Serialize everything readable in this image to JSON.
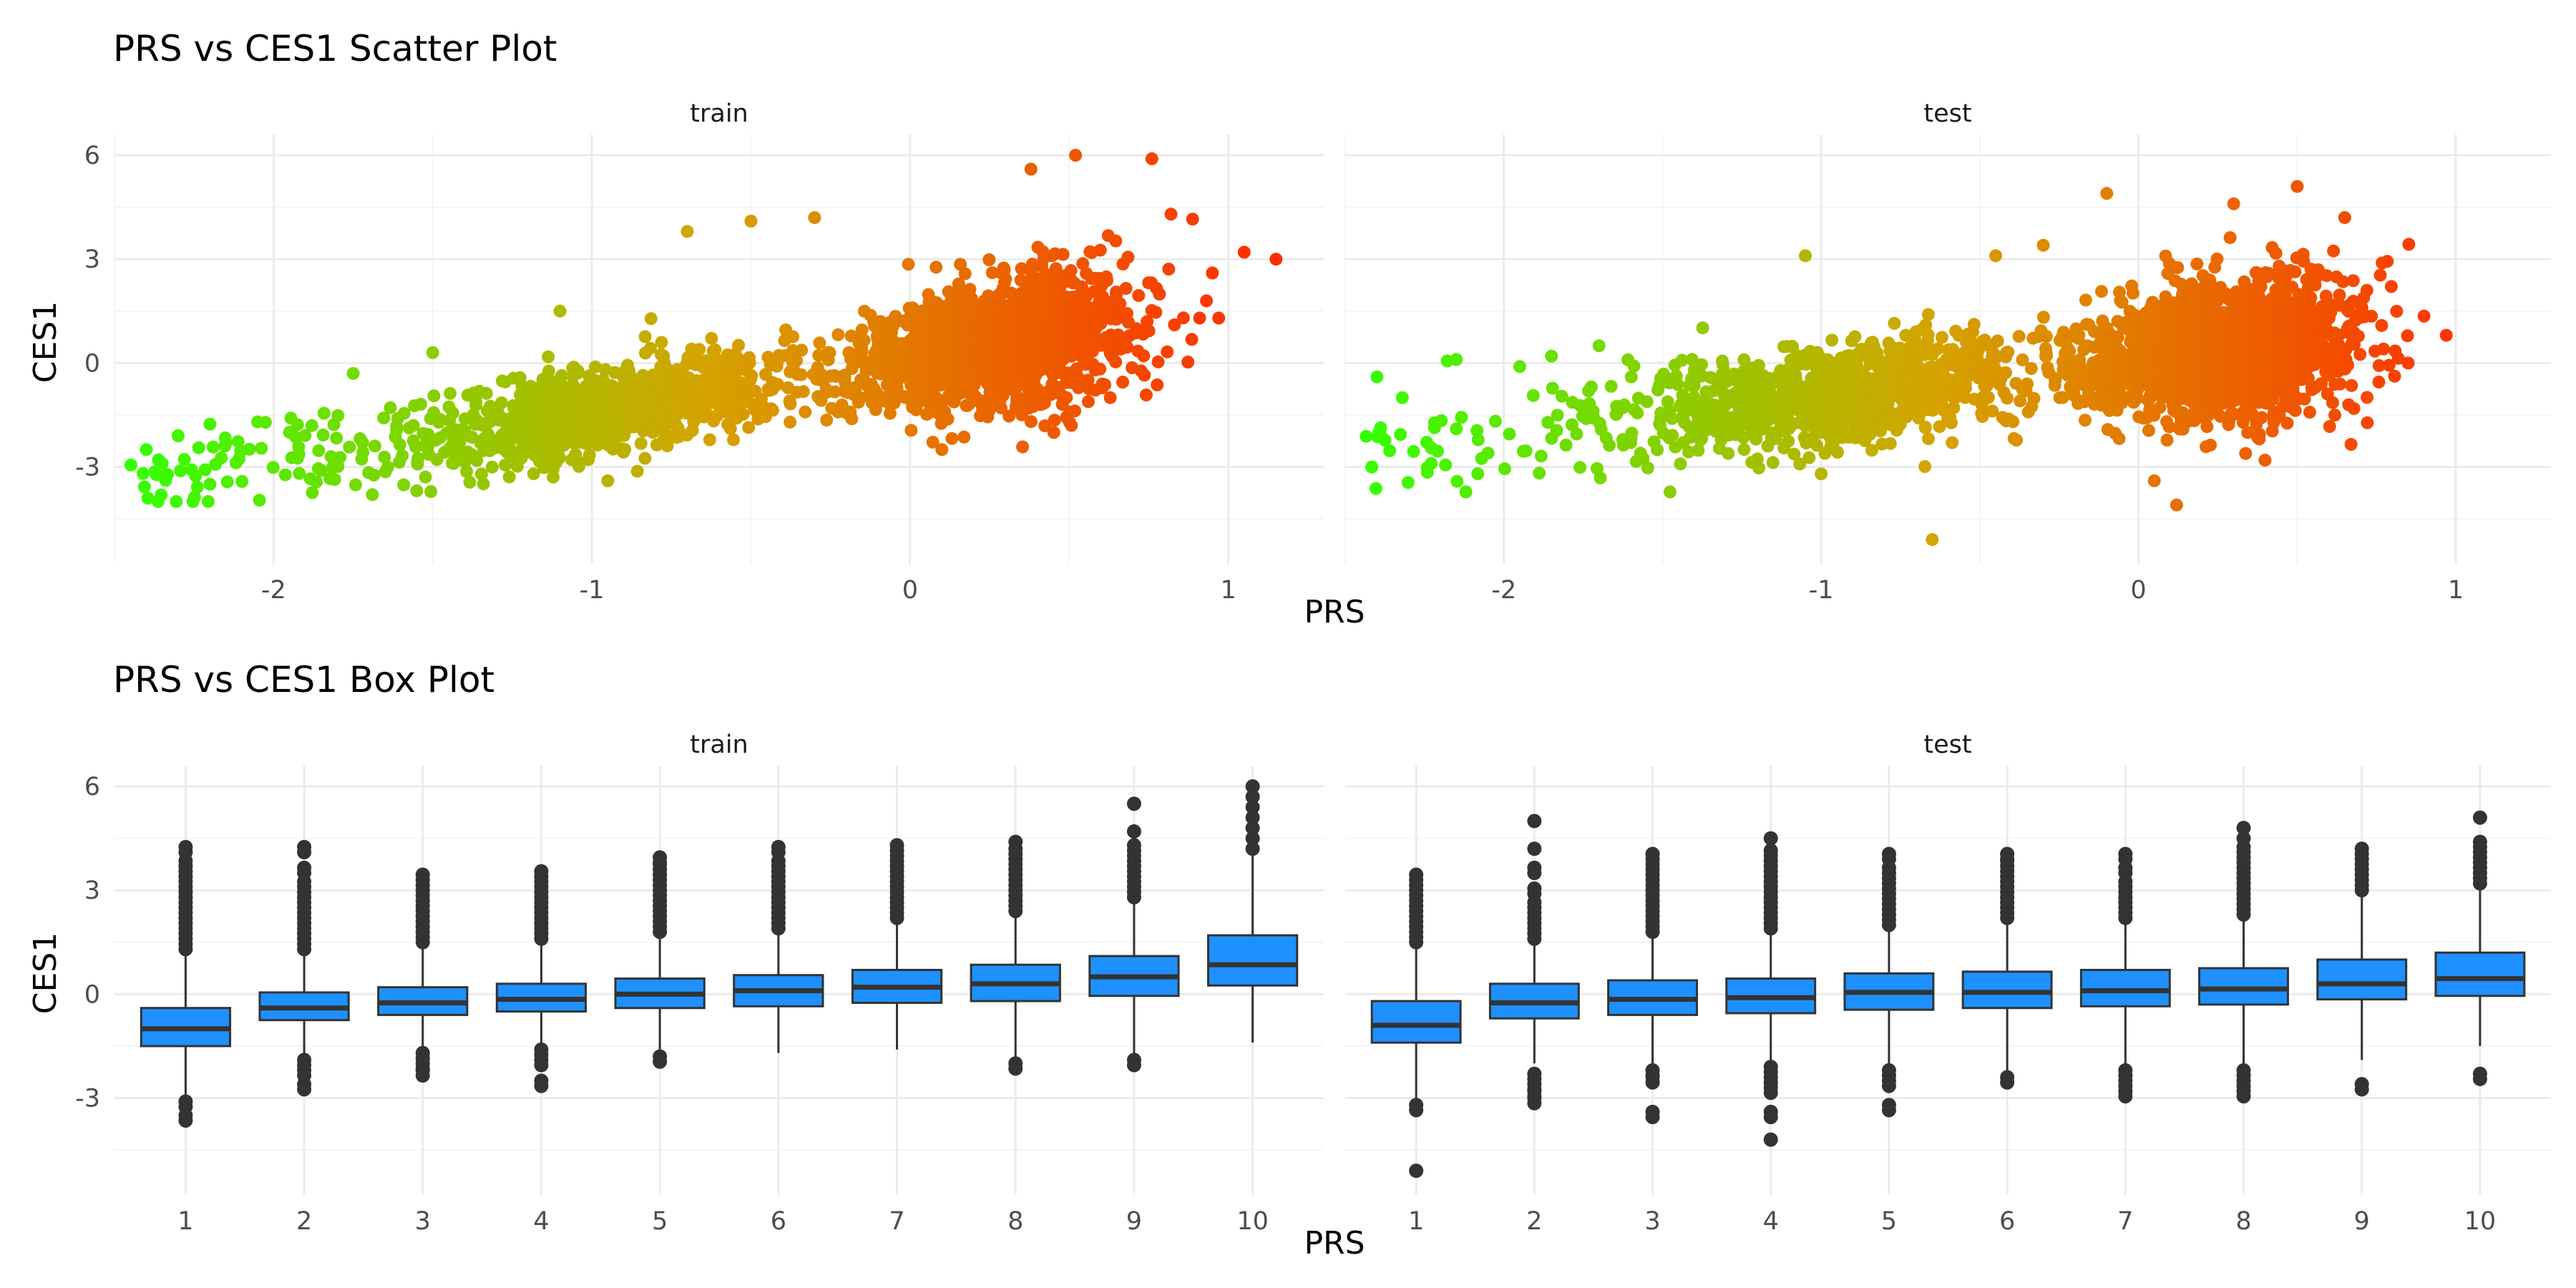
{
  "chart_data": [
    {
      "type": "scatter",
      "title": "PRS vs CES1 Scatter Plot",
      "xlabel": "PRS",
      "ylabel": "CES1",
      "facets": [
        "train",
        "test"
      ],
      "xlim": [
        -2.5,
        1.3
      ],
      "ylim": [
        -5.8,
        6.6
      ],
      "x_ticks": [
        -2,
        -1,
        0,
        1
      ],
      "y_ticks": [
        -3,
        0,
        3,
        6
      ],
      "grid": true,
      "legend": "none",
      "color_gradient": {
        "low": "#33ff00",
        "mid": "#d4a400",
        "high": "#ff2a00",
        "mapped_to": "PRS"
      },
      "trend": {
        "train": {
          "slope": 1.5,
          "intercept": 0.1,
          "spread": 0.9
        },
        "test": {
          "slope": 1.1,
          "intercept": 0.15,
          "spread": 1.0
        }
      },
      "highlight_points": {
        "train": [
          {
            "x": -2.4,
            "y": -2.5
          },
          {
            "x": -2.35,
            "y": -2.9
          },
          {
            "x": -2.3,
            "y": -2.1
          },
          {
            "x": -2.2,
            "y": -3.5
          },
          {
            "x": -2.15,
            "y": -2.3
          },
          {
            "x": -2.05,
            "y": -1.7
          },
          {
            "x": -1.95,
            "y": -2.0
          },
          {
            "x": -1.85,
            "y": -3.1
          },
          {
            "x": -1.75,
            "y": -0.3
          },
          {
            "x": -1.5,
            "y": 0.3
          },
          {
            "x": -1.1,
            "y": 1.5
          },
          {
            "x": -0.95,
            "y": -3.4
          },
          {
            "x": -0.7,
            "y": 3.8
          },
          {
            "x": -0.5,
            "y": 4.1
          },
          {
            "x": -0.3,
            "y": 4.2
          },
          {
            "x": 0.38,
            "y": 5.6
          },
          {
            "x": 0.52,
            "y": 6.0
          },
          {
            "x": 0.76,
            "y": 5.9
          },
          {
            "x": 0.82,
            "y": 4.3
          },
          {
            "x": 0.95,
            "y": 2.6
          },
          {
            "x": 1.05,
            "y": 3.2
          },
          {
            "x": 1.15,
            "y": 3.0
          },
          {
            "x": 0.97,
            "y": 1.3
          },
          {
            "x": 0.1,
            "y": -2.5
          }
        ],
        "test": [
          {
            "x": -2.4,
            "y": -0.4
          },
          {
            "x": -2.32,
            "y": -1.0
          },
          {
            "x": -2.15,
            "y": 0.1
          },
          {
            "x": -2.15,
            "y": -1.9
          },
          {
            "x": -2.05,
            "y": -2.6
          },
          {
            "x": -1.95,
            "y": -0.1
          },
          {
            "x": -1.85,
            "y": 0.2
          },
          {
            "x": -1.7,
            "y": 0.5
          },
          {
            "x": -1.6,
            "y": -2.3
          },
          {
            "x": -1.4,
            "y": -0.2
          },
          {
            "x": -1.05,
            "y": 3.1
          },
          {
            "x": -1.0,
            "y": -3.2
          },
          {
            "x": -0.65,
            "y": -5.1
          },
          {
            "x": -0.45,
            "y": 3.1
          },
          {
            "x": -0.3,
            "y": 3.4
          },
          {
            "x": -0.1,
            "y": 4.9
          },
          {
            "x": 0.05,
            "y": -3.4
          },
          {
            "x": 0.12,
            "y": -4.1
          },
          {
            "x": 0.5,
            "y": 5.1
          },
          {
            "x": 0.65,
            "y": 4.2
          },
          {
            "x": 0.85,
            "y": 0.0
          },
          {
            "x": 0.97,
            "y": 0.8
          },
          {
            "x": 0.3,
            "y": 4.6
          },
          {
            "x": 0.72,
            "y": 2.1
          }
        ]
      }
    },
    {
      "type": "box",
      "title": "PRS vs CES1 Box Plot",
      "xlabel": "PRS",
      "ylabel": "CES1",
      "facets": [
        "train",
        "test"
      ],
      "categories": [
        "1",
        "2",
        "3",
        "4",
        "5",
        "6",
        "7",
        "8",
        "9",
        "10"
      ],
      "ylim": [
        -5.8,
        6.6
      ],
      "y_ticks": [
        -3,
        0,
        3,
        6
      ],
      "grid": true,
      "legend": "none",
      "box_fill": "#1e90ff",
      "box_line": "#333333",
      "series": [
        {
          "name": "train",
          "boxes": [
            {
              "q1": -1.5,
              "median": -1.0,
              "q3": -0.4,
              "whisker_low": -3.0,
              "whisker_high": 1.1,
              "outliers": [
                -3.1,
                -3.5,
                1.3,
                1.6,
                1.9,
                2.2,
                2.5,
                2.8,
                3.1,
                3.4,
                3.7,
                4.1
              ]
            },
            {
              "q1": -0.75,
              "median": -0.4,
              "q3": 0.05,
              "whisker_low": -1.8,
              "whisker_high": 1.2,
              "outliers": [
                -1.9,
                -2.2,
                -2.6,
                1.3,
                1.6,
                1.9,
                2.2,
                2.5,
                2.8,
                3.1,
                3.5,
                4.1
              ]
            },
            {
              "q1": -0.6,
              "median": -0.25,
              "q3": 0.2,
              "whisker_low": -1.6,
              "whisker_high": 1.4,
              "outliers": [
                -1.7,
                -2.0,
                -2.2,
                1.5,
                1.8,
                2.1,
                2.4,
                2.7,
                3.0,
                3.3
              ]
            },
            {
              "q1": -0.5,
              "median": -0.15,
              "q3": 0.3,
              "whisker_low": -1.5,
              "whisker_high": 1.5,
              "outliers": [
                -1.6,
                -1.9,
                -2.5,
                1.6,
                1.9,
                2.2,
                2.5,
                2.8,
                3.1,
                3.4
              ]
            },
            {
              "q1": -0.4,
              "median": 0.0,
              "q3": 0.45,
              "whisker_low": -1.7,
              "whisker_high": 1.7,
              "outliers": [
                -1.8,
                1.8,
                2.1,
                2.4,
                2.7,
                3.0,
                3.3,
                3.6,
                3.8
              ]
            },
            {
              "q1": -0.35,
              "median": 0.1,
              "q3": 0.55,
              "whisker_low": -1.7,
              "whisker_high": 1.8,
              "outliers": [
                1.9,
                2.2,
                2.5,
                2.8,
                3.1,
                3.4,
                3.7,
                4.1
              ]
            },
            {
              "q1": -0.25,
              "median": 0.2,
              "q3": 0.7,
              "whisker_low": -1.6,
              "whisker_high": 2.1,
              "outliers": [
                2.2,
                2.5,
                2.8,
                3.1,
                3.4,
                3.7,
                4.0,
                4.3
              ]
            },
            {
              "q1": -0.2,
              "median": 0.3,
              "q3": 0.85,
              "whisker_low": -1.8,
              "whisker_high": 2.3,
              "outliers": [
                -2.0,
                2.4,
                2.7,
                3.0,
                3.3,
                3.6,
                3.9,
                4.2,
                4.4
              ]
            },
            {
              "q1": -0.05,
              "median": 0.5,
              "q3": 1.1,
              "whisker_low": -1.7,
              "whisker_high": 2.7,
              "outliers": [
                -1.9,
                2.8,
                3.1,
                3.4,
                3.7,
                4.0,
                4.3,
                4.7,
                5.5
              ]
            },
            {
              "q1": 0.25,
              "median": 0.85,
              "q3": 1.7,
              "whisker_low": -1.4,
              "whisker_high": 4.1,
              "outliers": [
                4.2,
                4.5,
                4.8,
                5.1,
                5.4,
                5.7,
                6.0
              ]
            }
          ]
        },
        {
          "name": "test",
          "boxes": [
            {
              "q1": -1.4,
              "median": -0.9,
              "q3": -0.2,
              "whisker_low": -3.0,
              "whisker_high": 1.3,
              "outliers": [
                -3.2,
                -5.1,
                1.5,
                1.8,
                2.1,
                2.4,
                2.7,
                3.0,
                3.3
              ]
            },
            {
              "q1": -0.7,
              "median": -0.25,
              "q3": 0.3,
              "whisker_low": -2.0,
              "whisker_high": 1.5,
              "outliers": [
                -2.3,
                -2.6,
                -2.8,
                -3.0,
                1.6,
                1.9,
                2.2,
                2.5,
                2.9,
                3.5,
                4.2,
                5.0
              ]
            },
            {
              "q1": -0.6,
              "median": -0.15,
              "q3": 0.4,
              "whisker_low": -2.0,
              "whisker_high": 1.7,
              "outliers": [
                -2.2,
                -2.4,
                -3.4,
                1.8,
                2.1,
                2.4,
                2.7,
                3.0,
                3.3,
                3.6,
                3.9
              ]
            },
            {
              "q1": -0.55,
              "median": -0.1,
              "q3": 0.45,
              "whisker_low": -2.0,
              "whisker_high": 1.8,
              "outliers": [
                -2.1,
                -2.4,
                -2.7,
                -3.4,
                -4.2,
                1.9,
                2.2,
                2.5,
                2.8,
                3.1,
                3.4,
                3.7,
                4.0,
                4.5
              ]
            },
            {
              "q1": -0.45,
              "median": 0.05,
              "q3": 0.6,
              "whisker_low": -2.0,
              "whisker_high": 1.9,
              "outliers": [
                -2.2,
                -2.5,
                -3.2,
                2.0,
                2.3,
                2.6,
                2.9,
                3.2,
                3.5,
                3.9
              ]
            },
            {
              "q1": -0.4,
              "median": 0.05,
              "q3": 0.65,
              "whisker_low": -2.3,
              "whisker_high": 2.1,
              "outliers": [
                -2.4,
                2.2,
                2.5,
                2.8,
                3.1,
                3.4,
                3.7,
                3.9
              ]
            },
            {
              "q1": -0.35,
              "median": 0.1,
              "q3": 0.7,
              "whisker_low": -2.0,
              "whisker_high": 2.1,
              "outliers": [
                -2.2,
                -2.5,
                -2.8,
                2.2,
                2.5,
                2.8,
                3.1,
                3.5,
                3.9
              ]
            },
            {
              "q1": -0.3,
              "median": 0.15,
              "q3": 0.75,
              "whisker_low": -2.0,
              "whisker_high": 2.2,
              "outliers": [
                -2.2,
                -2.5,
                -2.8,
                2.3,
                2.6,
                2.9,
                3.2,
                3.5,
                3.8,
                4.1,
                4.5,
                4.8
              ]
            },
            {
              "q1": -0.15,
              "median": 0.3,
              "q3": 1.0,
              "whisker_low": -1.9,
              "whisker_high": 2.9,
              "outliers": [
                -2.6,
                3.0,
                3.3,
                3.6,
                3.9,
                4.2
              ]
            },
            {
              "q1": -0.05,
              "median": 0.45,
              "q3": 1.2,
              "whisker_low": -1.5,
              "whisker_high": 3.0,
              "outliers": [
                -2.3,
                3.2,
                3.5,
                3.8,
                4.1,
                4.4,
                5.1
              ]
            }
          ]
        }
      ]
    }
  ]
}
